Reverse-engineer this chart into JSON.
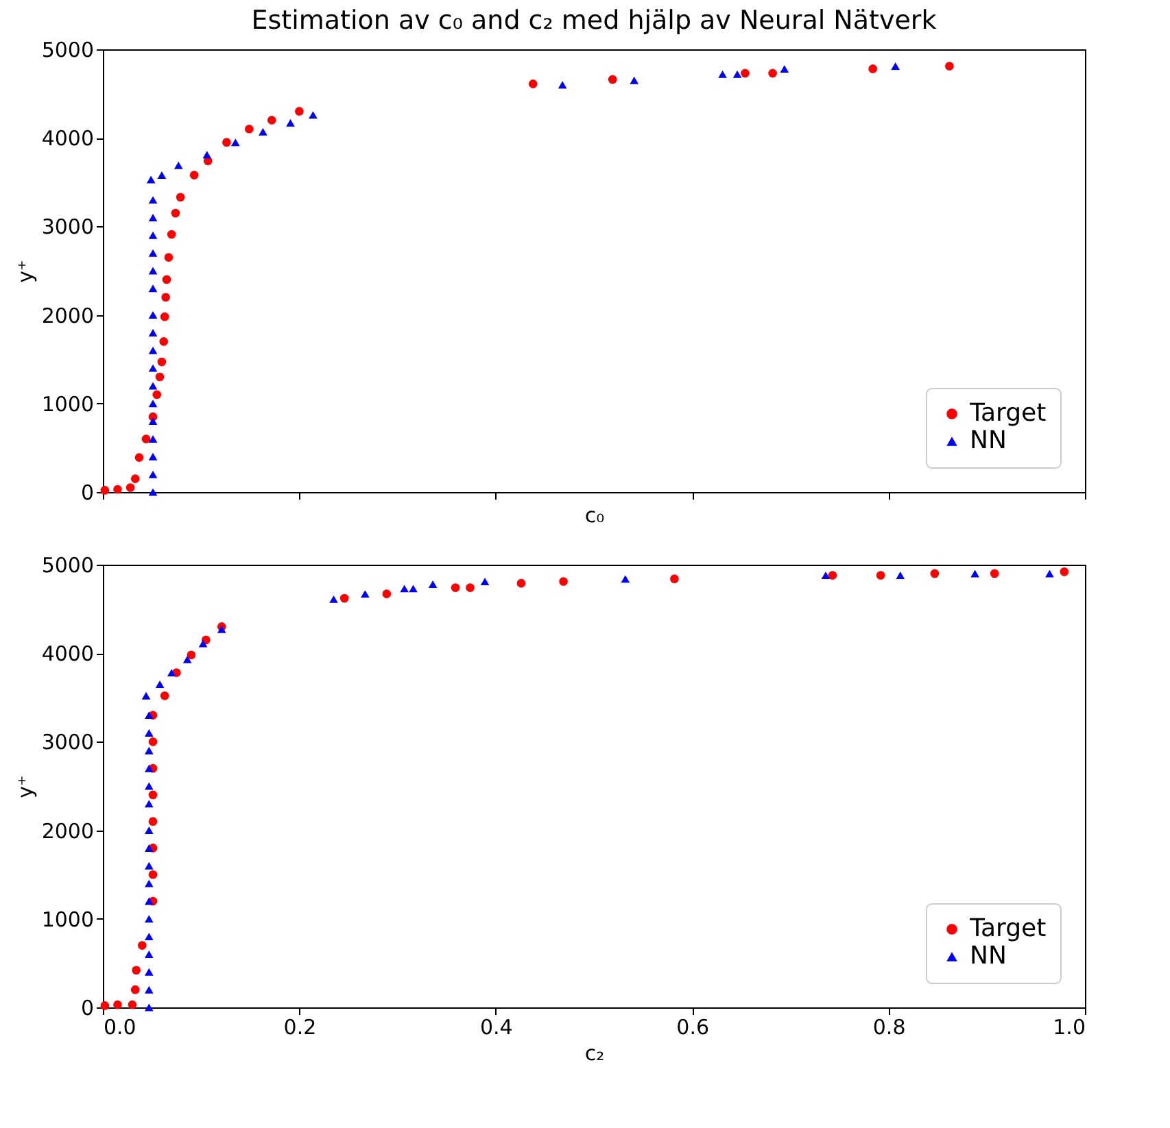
{
  "chart_data": [
    {
      "type": "scatter",
      "title": "Estimation av c₀ and c₂ med hjälp av Neural Nätverk",
      "xlabel": "c₀",
      "ylabel": "y⁺",
      "xlim": [
        0,
        1
      ],
      "ylim": [
        0,
        5000
      ],
      "xticks": [
        0,
        0.2,
        0.4,
        0.6,
        0.8,
        1
      ],
      "yticks": [
        0,
        1000,
        2000,
        3000,
        4000,
        5000
      ],
      "tick_labels": "y",
      "grid": false,
      "legend": "bottom right",
      "series": [
        {
          "name": "Target",
          "color": "#ff0000",
          "marker": "circle",
          "x": [
            0.002,
            0.015,
            0.028,
            0.033,
            0.037,
            0.044,
            0.051,
            0.055,
            0.058,
            0.06,
            0.062,
            0.063,
            0.064,
            0.065,
            0.067,
            0.07,
            0.074,
            0.079,
            0.093,
            0.107,
            0.126,
            0.149,
            0.172,
            0.2,
            0.438,
            0.519,
            0.654,
            0.682,
            0.784,
            0.862
          ],
          "values": [
            20,
            30,
            50,
            150,
            390,
            600,
            850,
            1100,
            1300,
            1470,
            1700,
            1980,
            2200,
            2400,
            2650,
            2910,
            3150,
            3330,
            3580,
            3740,
            3950,
            4100,
            4200,
            4300,
            4610,
            4660,
            4730,
            4730,
            4780,
            4810
          ]
        },
        {
          "name": "NN",
          "color": "#0000ff",
          "marker": "triangle",
          "x": [
            0.051,
            0.051,
            0.051,
            0.051,
            0.051,
            0.051,
            0.051,
            0.051,
            0.051,
            0.051,
            0.051,
            0.051,
            0.051,
            0.051,
            0.051,
            0.051,
            0.051,
            0.049,
            0.06,
            0.077,
            0.106,
            0.135,
            0.163,
            0.191,
            0.214,
            0.468,
            0.541,
            0.631,
            0.646,
            0.694,
            0.807
          ],
          "values": [
            0,
            200,
            400,
            600,
            800,
            1000,
            1200,
            1400,
            1600,
            1800,
            2000,
            2300,
            2500,
            2700,
            2900,
            3100,
            3300,
            3530,
            3580,
            3690,
            3810,
            3950,
            4070,
            4170,
            4260,
            4600,
            4650,
            4720,
            4720,
            4780,
            4810
          ]
        }
      ]
    },
    {
      "type": "scatter",
      "xlabel": "c₂",
      "ylabel": "y⁺",
      "xlim": [
        0,
        1
      ],
      "ylim": [
        0,
        5000
      ],
      "xticks": [
        {
          "value": 0,
          "label": "0.0"
        },
        0.2,
        0.4,
        0.6,
        0.8,
        {
          "value": 1,
          "label": "1.0"
        }
      ],
      "yticks": [
        0,
        1000,
        2000,
        3000,
        4000,
        5000
      ],
      "grid": false,
      "legend": "bottom right",
      "series": [
        {
          "name": "Target",
          "color": "#ff0000",
          "marker": "circle",
          "x": [
            0.002,
            0.015,
            0.03,
            0.033,
            0.034,
            0.04,
            0.046,
            0.051,
            0.051,
            0.051,
            0.051,
            0.051,
            0.051,
            0.051,
            0.051,
            0.063,
            0.075,
            0.09,
            0.105,
            0.121,
            0.246,
            0.289,
            0.359,
            0.374,
            0.426,
            0.469,
            0.582,
            0.743,
            0.792,
            0.847,
            0.908,
            0.979
          ],
          "values": [
            20,
            30,
            30,
            200,
            420,
            700,
            null,
            1200,
            1500,
            1800,
            2100,
            2400,
            2700,
            3000,
            3300,
            3520,
            3780,
            3980,
            4150,
            4300,
            4620,
            4670,
            4740,
            4740,
            4790,
            4810,
            4840,
            4880,
            4880,
            4900,
            4900,
            4920
          ]
        },
        {
          "name": "NN",
          "color": "#0000ff",
          "marker": "triangle",
          "x": [
            0.047,
            0.047,
            0.047,
            0.047,
            0.047,
            0.047,
            0.047,
            0.047,
            0.047,
            0.047,
            0.047,
            0.047,
            0.047,
            0.047,
            0.047,
            0.047,
            0.047,
            0.044,
            0.058,
            0.07,
            0.086,
            0.102,
            0.121,
            0.235,
            0.267,
            0.307,
            0.316,
            0.336,
            0.389,
            0.532,
            0.736,
            0.812,
            0.888,
            0.964
          ],
          "values": [
            0,
            200,
            400,
            600,
            800,
            1000,
            1200,
            1400,
            1600,
            1800,
            2000,
            2300,
            2500,
            2700,
            2900,
            3100,
            3300,
            3520,
            3650,
            3780,
            3930,
            4110,
            4270,
            4610,
            4670,
            4730,
            4730,
            4780,
            4810,
            4840,
            4880,
            4880,
            4900,
            4900
          ]
        }
      ]
    }
  ]
}
